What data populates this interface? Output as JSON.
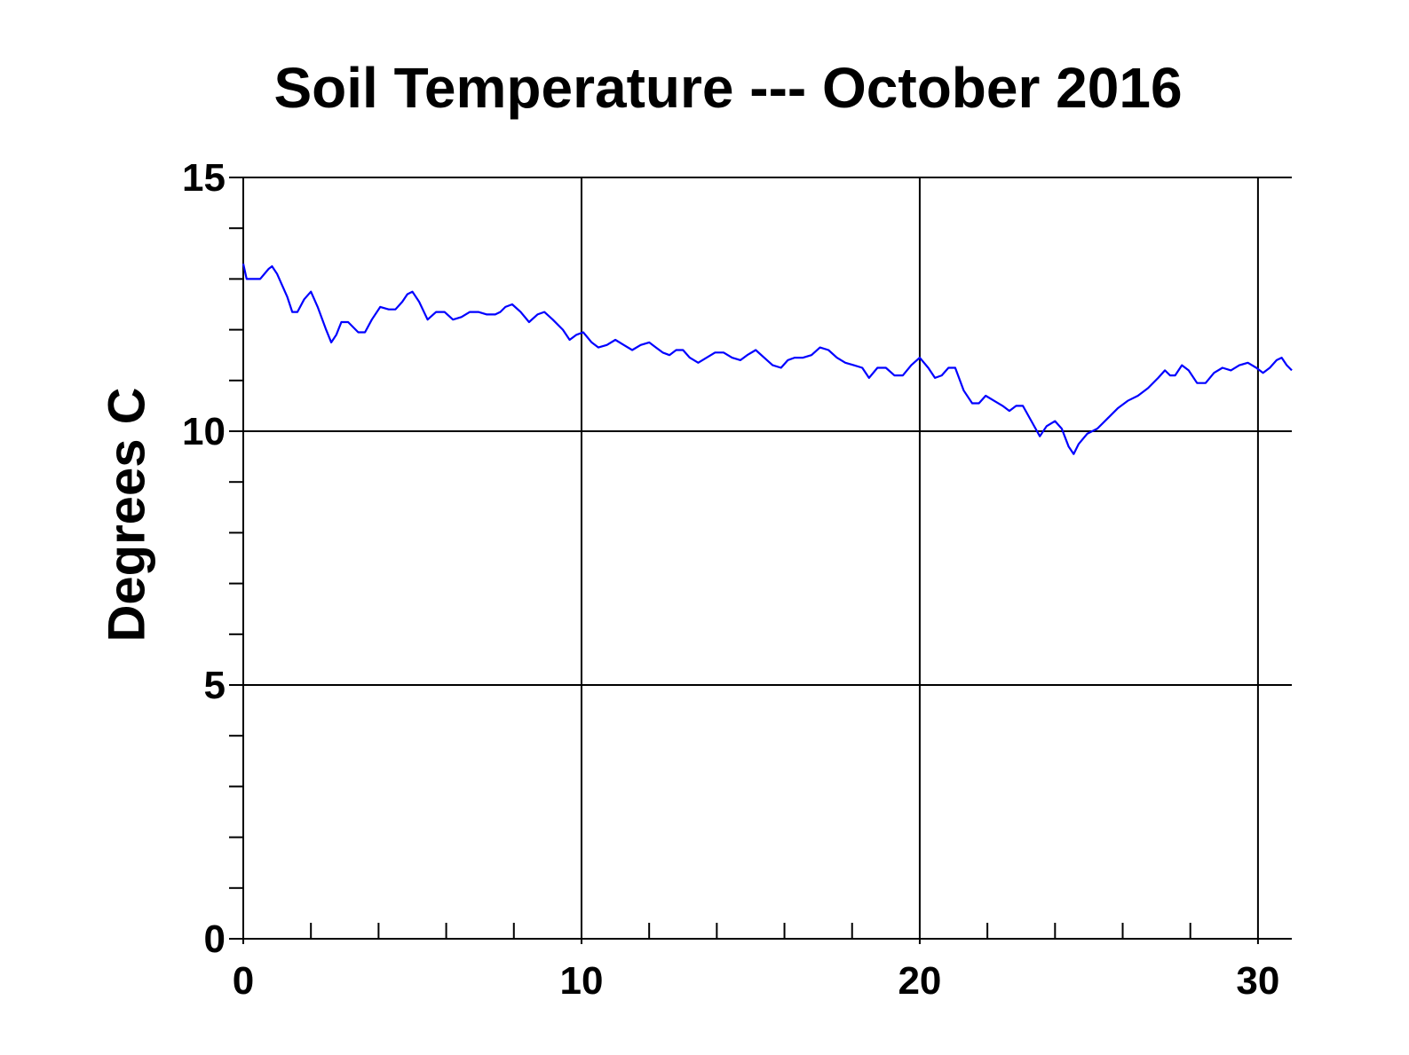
{
  "chart_data": {
    "type": "line",
    "title": "Soil Temperature --- October 2016",
    "xlabel": "",
    "ylabel": "Degrees C",
    "xlim": [
      0,
      31
    ],
    "ylim": [
      0,
      15
    ],
    "x_major_ticks": [
      0,
      10,
      20,
      30
    ],
    "x_tick_labels": [
      "0",
      "10",
      "20",
      "30"
    ],
    "y_major_ticks": [
      0,
      5,
      10,
      15
    ],
    "y_tick_labels": [
      "0",
      "5",
      "10",
      "15"
    ],
    "grid": true,
    "series": [
      {
        "color": "#0000ff",
        "x": [
          0,
          0.1,
          0.25,
          0.5,
          0.75,
          0.85,
          1.0,
          1.3,
          1.45,
          1.6,
          1.8,
          2.0,
          2.2,
          2.45,
          2.6,
          2.75,
          2.9,
          3.1,
          3.4,
          3.6,
          3.8,
          4.05,
          4.3,
          4.5,
          4.7,
          4.85,
          5.0,
          5.2,
          5.45,
          5.7,
          5.95,
          6.2,
          6.45,
          6.7,
          6.95,
          7.2,
          7.45,
          7.6,
          7.75,
          7.95,
          8.2,
          8.45,
          8.7,
          8.9,
          9.15,
          9.45,
          9.65,
          9.85,
          10.05,
          10.3,
          10.5,
          10.75,
          11.0,
          11.25,
          11.5,
          11.75,
          12.0,
          12.2,
          12.4,
          12.6,
          12.8,
          13.0,
          13.2,
          13.45,
          13.7,
          13.95,
          14.2,
          14.45,
          14.7,
          14.9,
          15.15,
          15.4,
          15.65,
          15.9,
          16.1,
          16.3,
          16.55,
          16.8,
          17.05,
          17.3,
          17.55,
          17.8,
          18.05,
          18.3,
          18.5,
          18.75,
          19.0,
          19.25,
          19.5,
          19.75,
          20.0,
          20.25,
          20.45,
          20.65,
          20.85,
          21.05,
          21.3,
          21.55,
          21.75,
          21.95,
          22.2,
          22.45,
          22.65,
          22.85,
          23.05,
          23.3,
          23.55,
          23.75,
          24.0,
          24.2,
          24.4,
          24.55,
          24.7,
          24.95,
          25.25,
          25.55,
          25.85,
          26.15,
          26.45,
          26.75,
          27.05,
          27.25,
          27.4,
          27.55,
          27.75,
          27.95,
          28.2,
          28.45,
          28.7,
          28.95,
          29.2,
          29.45,
          29.7,
          29.95,
          30.15,
          30.35,
          30.55,
          30.7,
          30.85,
          31.0
        ],
        "y": [
          13.3,
          13.0,
          13.0,
          13.0,
          13.2,
          13.25,
          13.1,
          12.65,
          12.35,
          12.35,
          12.6,
          12.75,
          12.45,
          12.0,
          11.75,
          11.9,
          12.15,
          12.15,
          11.95,
          11.95,
          12.2,
          12.45,
          12.4,
          12.4,
          12.55,
          12.7,
          12.75,
          12.55,
          12.2,
          12.35,
          12.35,
          12.2,
          12.25,
          12.35,
          12.35,
          12.3,
          12.3,
          12.35,
          12.45,
          12.5,
          12.35,
          12.15,
          12.3,
          12.35,
          12.2,
          12.0,
          11.8,
          11.9,
          11.95,
          11.75,
          11.65,
          11.7,
          11.8,
          11.7,
          11.6,
          11.7,
          11.75,
          11.65,
          11.55,
          11.5,
          11.6,
          11.6,
          11.45,
          11.35,
          11.45,
          11.55,
          11.55,
          11.45,
          11.4,
          11.5,
          11.6,
          11.45,
          11.3,
          11.25,
          11.4,
          11.45,
          11.45,
          11.5,
          11.65,
          11.6,
          11.45,
          11.35,
          11.3,
          11.25,
          11.05,
          11.25,
          11.25,
          11.1,
          11.1,
          11.3,
          11.45,
          11.25,
          11.05,
          11.1,
          11.25,
          11.25,
          10.8,
          10.55,
          10.55,
          10.7,
          10.6,
          10.5,
          10.4,
          10.5,
          10.5,
          10.2,
          9.9,
          10.1,
          10.2,
          10.05,
          9.7,
          9.55,
          9.75,
          9.95,
          10.05,
          10.25,
          10.45,
          10.6,
          10.7,
          10.85,
          11.05,
          11.2,
          11.1,
          11.1,
          11.3,
          11.2,
          10.95,
          10.95,
          11.15,
          11.25,
          11.2,
          11.3,
          11.35,
          11.25,
          11.15,
          11.25,
          11.4,
          11.45,
          11.3,
          11.2
        ]
      }
    ]
  }
}
